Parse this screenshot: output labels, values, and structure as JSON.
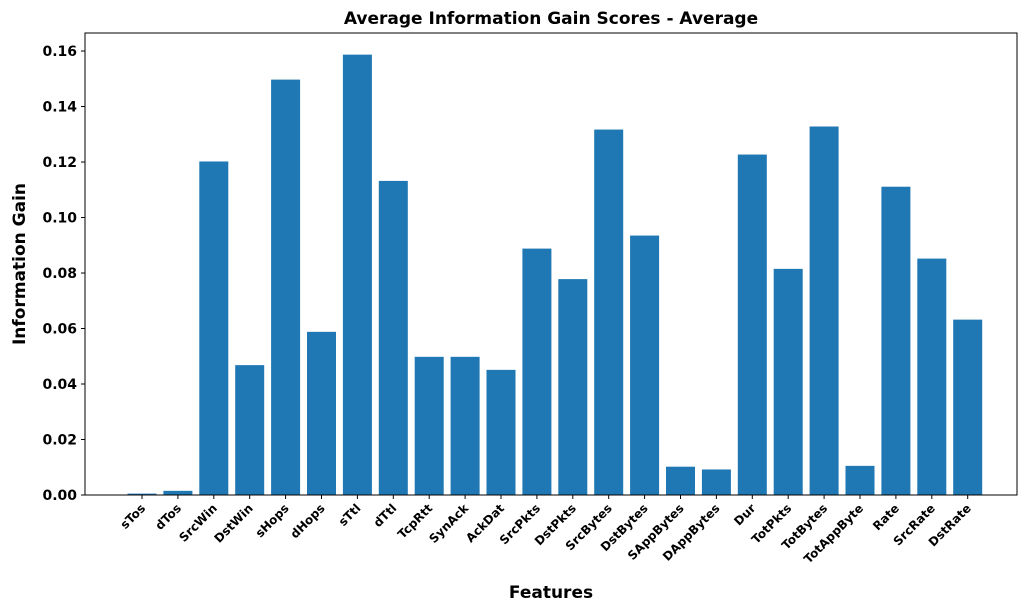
{
  "chart_data": {
    "type": "bar",
    "title": "Average Information Gain Scores - Average",
    "xlabel": "Features",
    "ylabel": "Information Gain",
    "categories": [
      "sTos",
      "dTos",
      "SrcWin",
      "DstWin",
      "sHops",
      "dHops",
      "sTtl",
      "dTtl",
      "TcpRtt",
      "SynAck",
      "AckDat",
      "SrcPkts",
      "DstPkts",
      "SrcBytes",
      "DstBytes",
      "SAppBytes",
      "DAppBytes",
      "Dur",
      "TotPkts",
      "TotBytes",
      "TotAppByte",
      "Rate",
      "SrcRate",
      "DstRate"
    ],
    "values": [
      0.0005,
      0.0015,
      0.1202,
      0.0468,
      0.1497,
      0.0588,
      0.1587,
      0.1132,
      0.0498,
      0.0498,
      0.0451,
      0.0888,
      0.0778,
      0.1317,
      0.0935,
      0.0102,
      0.0092,
      0.1227,
      0.0815,
      0.1328,
      0.0105,
      0.1111,
      0.0852,
      0.0632
    ],
    "yticks": [
      "0.00",
      "0.02",
      "0.04",
      "0.06",
      "0.08",
      "0.10",
      "0.12",
      "0.14",
      "0.16"
    ],
    "ylim": [
      0,
      0.1665
    ],
    "bar_color": "#1f77b4",
    "grid": false
  }
}
